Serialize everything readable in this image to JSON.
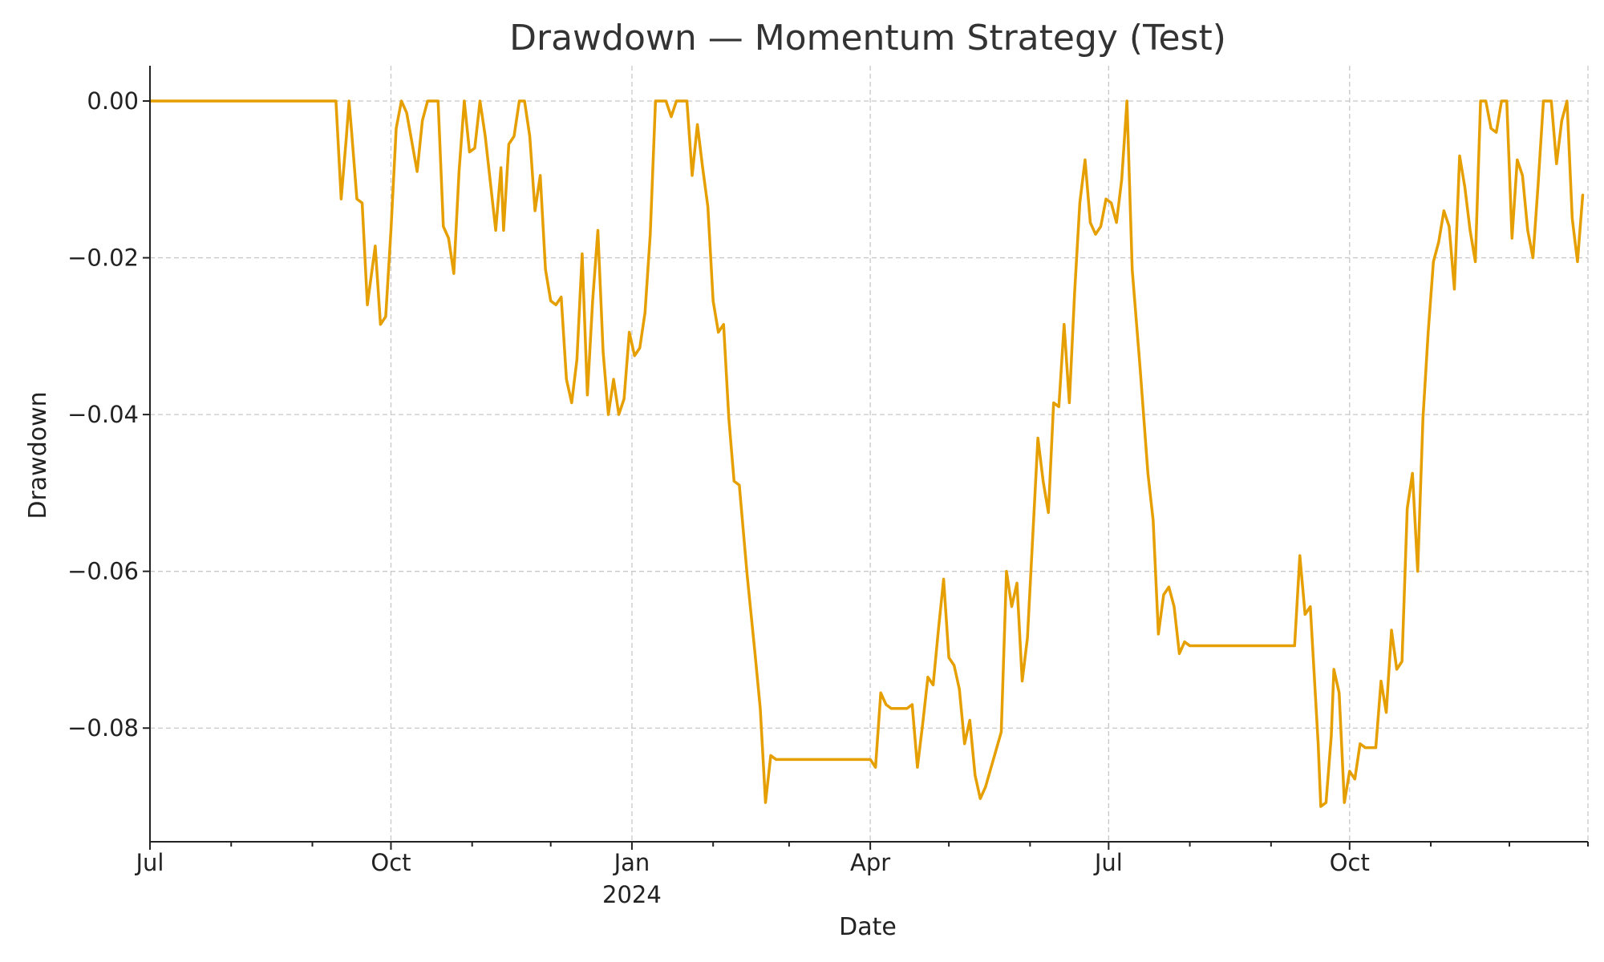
{
  "chart_data": {
    "type": "line",
    "title": "Drawdown — Momentum Strategy (Test)",
    "xlabel": "Date",
    "ylabel": "Drawdown",
    "xlim": [
      "2023-07-01",
      "2024-12-31"
    ],
    "ylim": [
      -0.0945,
      0.0045
    ],
    "grid": true,
    "y_ticks": [
      {
        "value": 0.0,
        "label": "0.00"
      },
      {
        "value": -0.02,
        "label": "−0.02"
      },
      {
        "value": -0.04,
        "label": "−0.04"
      },
      {
        "value": -0.06,
        "label": "−0.06"
      },
      {
        "value": -0.08,
        "label": "−0.08"
      }
    ],
    "x_major_ticks": [
      {
        "date": "2023-07-01",
        "label": "Jul",
        "sublabel": ""
      },
      {
        "date": "2023-10-01",
        "label": "Oct",
        "sublabel": ""
      },
      {
        "date": "2024-01-01",
        "label": "Jan",
        "sublabel": "2024"
      },
      {
        "date": "2024-04-01",
        "label": "Apr",
        "sublabel": ""
      },
      {
        "date": "2024-07-01",
        "label": "Jul",
        "sublabel": ""
      },
      {
        "date": "2024-10-01",
        "label": "Oct",
        "sublabel": ""
      }
    ],
    "x_minor_ticks": [
      "2023-08-01",
      "2023-09-01",
      "2023-11-01",
      "2023-12-01",
      "2024-02-01",
      "2024-03-01",
      "2024-05-01",
      "2024-06-01",
      "2024-08-01",
      "2024-09-01",
      "2024-11-01",
      "2024-12-01",
      "2024-12-31"
    ],
    "series": [
      {
        "color": "#E69F00",
        "points": [
          [
            "2023-07-01",
            0.0
          ],
          [
            "2023-09-10",
            0.0
          ],
          [
            "2023-09-12",
            -0.0125
          ],
          [
            "2023-09-14",
            -0.0045
          ],
          [
            "2023-09-15",
            0.0
          ],
          [
            "2023-09-16",
            -0.004
          ],
          [
            "2023-09-18",
            -0.0125
          ],
          [
            "2023-09-20",
            -0.013
          ],
          [
            "2023-09-22",
            -0.026
          ],
          [
            "2023-09-25",
            -0.0185
          ],
          [
            "2023-09-27",
            -0.0285
          ],
          [
            "2023-09-29",
            -0.0275
          ],
          [
            "2023-10-01",
            -0.0165
          ],
          [
            "2023-10-03",
            -0.0035
          ],
          [
            "2023-10-05",
            0.0
          ],
          [
            "2023-10-07",
            -0.0015
          ],
          [
            "2023-10-11",
            -0.009
          ],
          [
            "2023-10-13",
            -0.0025
          ],
          [
            "2023-10-15",
            0.0
          ],
          [
            "2023-10-19",
            0.0
          ],
          [
            "2023-10-21",
            -0.016
          ],
          [
            "2023-10-23",
            -0.0175
          ],
          [
            "2023-10-25",
            -0.022
          ],
          [
            "2023-10-27",
            -0.009
          ],
          [
            "2023-10-29",
            0.0
          ],
          [
            "2023-10-31",
            -0.0065
          ],
          [
            "2023-11-02",
            -0.006
          ],
          [
            "2023-11-04",
            0.0
          ],
          [
            "2023-11-06",
            -0.0045
          ],
          [
            "2023-11-10",
            -0.0165
          ],
          [
            "2023-11-12",
            -0.0085
          ],
          [
            "2023-11-13",
            -0.0165
          ],
          [
            "2023-11-15",
            -0.0055
          ],
          [
            "2023-11-17",
            -0.0045
          ],
          [
            "2023-11-19",
            0.0
          ],
          [
            "2023-11-21",
            0.0
          ],
          [
            "2023-11-23",
            -0.0045
          ],
          [
            "2023-11-25",
            -0.014
          ],
          [
            "2023-11-27",
            -0.0095
          ],
          [
            "2023-11-29",
            -0.0215
          ],
          [
            "2023-12-01",
            -0.0255
          ],
          [
            "2023-12-03",
            -0.026
          ],
          [
            "2023-12-05",
            -0.025
          ],
          [
            "2023-12-07",
            -0.0355
          ],
          [
            "2023-12-09",
            -0.0385
          ],
          [
            "2023-12-11",
            -0.033
          ],
          [
            "2023-12-13",
            -0.0195
          ],
          [
            "2023-12-15",
            -0.0375
          ],
          [
            "2023-12-17",
            -0.0255
          ],
          [
            "2023-12-19",
            -0.0165
          ],
          [
            "2023-12-21",
            -0.032
          ],
          [
            "2023-12-23",
            -0.04
          ],
          [
            "2023-12-25",
            -0.0355
          ],
          [
            "2023-12-27",
            -0.04
          ],
          [
            "2023-12-29",
            -0.038
          ],
          [
            "2023-12-31",
            -0.0295
          ],
          [
            "2024-01-02",
            -0.0325
          ],
          [
            "2024-01-04",
            -0.0315
          ],
          [
            "2024-01-06",
            -0.027
          ],
          [
            "2024-01-08",
            -0.017
          ],
          [
            "2024-01-10",
            0.0
          ],
          [
            "2024-01-12",
            0.0
          ],
          [
            "2024-01-14",
            0.0
          ],
          [
            "2024-01-16",
            -0.002
          ],
          [
            "2024-01-18",
            0.0
          ],
          [
            "2024-01-22",
            0.0
          ],
          [
            "2024-01-24",
            -0.0095
          ],
          [
            "2024-01-26",
            -0.003
          ],
          [
            "2024-01-28",
            -0.0085
          ],
          [
            "2024-01-30",
            -0.0135
          ],
          [
            "2024-02-01",
            -0.0255
          ],
          [
            "2024-02-03",
            -0.0295
          ],
          [
            "2024-02-05",
            -0.0285
          ],
          [
            "2024-02-07",
            -0.0405
          ],
          [
            "2024-02-09",
            -0.0485
          ],
          [
            "2024-02-11",
            -0.049
          ],
          [
            "2024-02-14",
            -0.0605
          ],
          [
            "2024-02-17",
            -0.0705
          ],
          [
            "2024-02-19",
            -0.0775
          ],
          [
            "2024-02-21",
            -0.0895
          ],
          [
            "2024-02-23",
            -0.0835
          ],
          [
            "2024-02-25",
            -0.084
          ],
          [
            "2024-04-01",
            -0.084
          ],
          [
            "2024-04-03",
            -0.085
          ],
          [
            "2024-04-05",
            -0.0755
          ],
          [
            "2024-04-07",
            -0.077
          ],
          [
            "2024-04-09",
            -0.0775
          ],
          [
            "2024-04-15",
            -0.0775
          ],
          [
            "2024-04-17",
            -0.077
          ],
          [
            "2024-04-19",
            -0.085
          ],
          [
            "2024-04-21",
            -0.0795
          ],
          [
            "2024-04-23",
            -0.0735
          ],
          [
            "2024-04-25",
            -0.0745
          ],
          [
            "2024-04-27",
            -0.0675
          ],
          [
            "2024-04-29",
            -0.061
          ],
          [
            "2024-05-01",
            -0.071
          ],
          [
            "2024-05-03",
            -0.072
          ],
          [
            "2024-05-05",
            -0.075
          ],
          [
            "2024-05-07",
            -0.082
          ],
          [
            "2024-05-09",
            -0.079
          ],
          [
            "2024-05-11",
            -0.086
          ],
          [
            "2024-05-13",
            -0.089
          ],
          [
            "2024-05-15",
            -0.0875
          ],
          [
            "2024-05-21",
            -0.0805
          ],
          [
            "2024-05-23",
            -0.06
          ],
          [
            "2024-05-25",
            -0.0645
          ],
          [
            "2024-05-27",
            -0.0615
          ],
          [
            "2024-05-29",
            -0.074
          ],
          [
            "2024-05-31",
            -0.0685
          ],
          [
            "2024-06-04",
            -0.043
          ],
          [
            "2024-06-06",
            -0.0485
          ],
          [
            "2024-06-08",
            -0.0525
          ],
          [
            "2024-06-10",
            -0.0385
          ],
          [
            "2024-06-12",
            -0.039
          ],
          [
            "2024-06-14",
            -0.0285
          ],
          [
            "2024-06-16",
            -0.0385
          ],
          [
            "2024-06-18",
            -0.0245
          ],
          [
            "2024-06-20",
            -0.013
          ],
          [
            "2024-06-22",
            -0.0075
          ],
          [
            "2024-06-24",
            -0.0155
          ],
          [
            "2024-06-26",
            -0.017
          ],
          [
            "2024-06-28",
            -0.016
          ],
          [
            "2024-06-30",
            -0.0125
          ],
          [
            "2024-07-02",
            -0.013
          ],
          [
            "2024-07-04",
            -0.0155
          ],
          [
            "2024-07-06",
            -0.01
          ],
          [
            "2024-07-08",
            0.0
          ],
          [
            "2024-07-10",
            -0.0215
          ],
          [
            "2024-07-13",
            -0.034
          ],
          [
            "2024-07-16",
            -0.0475
          ],
          [
            "2024-07-18",
            -0.0535
          ],
          [
            "2024-07-20",
            -0.068
          ],
          [
            "2024-07-22",
            -0.063
          ],
          [
            "2024-07-24",
            -0.062
          ],
          [
            "2024-07-26",
            -0.0645
          ],
          [
            "2024-07-28",
            -0.0705
          ],
          [
            "2024-07-30",
            -0.069
          ],
          [
            "2024-08-01",
            -0.0695
          ],
          [
            "2024-09-10",
            -0.0695
          ],
          [
            "2024-09-12",
            -0.058
          ],
          [
            "2024-09-14",
            -0.0655
          ],
          [
            "2024-09-16",
            -0.0645
          ],
          [
            "2024-09-19",
            -0.082
          ],
          [
            "2024-09-20",
            -0.09
          ],
          [
            "2024-09-22",
            -0.0895
          ],
          [
            "2024-09-24",
            -0.081
          ],
          [
            "2024-09-25",
            -0.0725
          ],
          [
            "2024-09-27",
            -0.0755
          ],
          [
            "2024-09-29",
            -0.0895
          ],
          [
            "2024-10-01",
            -0.0855
          ],
          [
            "2024-10-03",
            -0.0865
          ],
          [
            "2024-10-05",
            -0.082
          ],
          [
            "2024-10-07",
            -0.0825
          ],
          [
            "2024-10-11",
            -0.0825
          ],
          [
            "2024-10-13",
            -0.074
          ],
          [
            "2024-10-15",
            -0.078
          ],
          [
            "2024-10-17",
            -0.0675
          ],
          [
            "2024-10-19",
            -0.0725
          ],
          [
            "2024-10-21",
            -0.0715
          ],
          [
            "2024-10-23",
            -0.052
          ],
          [
            "2024-10-25",
            -0.0475
          ],
          [
            "2024-10-27",
            -0.06
          ],
          [
            "2024-10-29",
            -0.0405
          ],
          [
            "2024-10-31",
            -0.0295
          ],
          [
            "2024-11-02",
            -0.0205
          ],
          [
            "2024-11-04",
            -0.018
          ],
          [
            "2024-11-06",
            -0.014
          ],
          [
            "2024-11-08",
            -0.016
          ],
          [
            "2024-11-10",
            -0.024
          ],
          [
            "2024-11-12",
            -0.007
          ],
          [
            "2024-11-14",
            -0.011
          ],
          [
            "2024-11-16",
            -0.0165
          ],
          [
            "2024-11-18",
            -0.0205
          ],
          [
            "2024-11-20",
            0.0
          ],
          [
            "2024-11-22",
            0.0
          ],
          [
            "2024-11-24",
            -0.0035
          ],
          [
            "2024-11-26",
            -0.004
          ],
          [
            "2024-11-28",
            0.0
          ],
          [
            "2024-11-30",
            0.0
          ],
          [
            "2024-12-02",
            -0.0175
          ],
          [
            "2024-12-04",
            -0.0075
          ],
          [
            "2024-12-06",
            -0.0095
          ],
          [
            "2024-12-08",
            -0.0165
          ],
          [
            "2024-12-10",
            -0.02
          ],
          [
            "2024-12-12",
            -0.0105
          ],
          [
            "2024-12-14",
            0.0
          ],
          [
            "2024-12-17",
            0.0
          ],
          [
            "2024-12-19",
            -0.008
          ],
          [
            "2024-12-21",
            -0.0025
          ],
          [
            "2024-12-23",
            0.0
          ],
          [
            "2024-12-25",
            -0.015
          ],
          [
            "2024-12-27",
            -0.0205
          ],
          [
            "2024-12-29",
            -0.012
          ]
        ]
      }
    ]
  }
}
